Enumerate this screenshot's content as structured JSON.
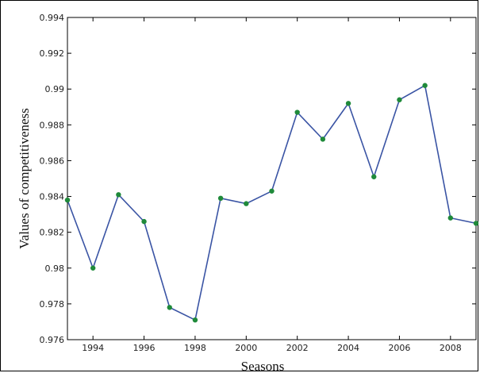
{
  "chart_data": {
    "type": "line",
    "title": "",
    "xlabel": "Seasons",
    "ylabel": "Values of competitiveness",
    "xlim": [
      1993,
      2009
    ],
    "ylim": [
      0.976,
      0.994
    ],
    "x_ticks": [
      1994,
      1996,
      1998,
      2000,
      2002,
      2004,
      2006,
      2008
    ],
    "x_tick_labels": [
      "1994",
      "1996",
      "1998",
      "2000",
      "2002",
      "2004",
      "2006",
      "2008"
    ],
    "y_ticks": [
      0.976,
      0.978,
      0.98,
      0.982,
      0.984,
      0.986,
      0.988,
      0.99,
      0.992,
      0.994
    ],
    "y_tick_labels": [
      "0.976",
      "0.978",
      "0.98",
      "0.982",
      "0.984",
      "0.986",
      "0.988",
      "0.99",
      "0.992",
      "0.994"
    ],
    "grid": false,
    "x": [
      1993,
      1994,
      1995,
      1996,
      1997,
      1998,
      1999,
      2000,
      2001,
      2002,
      2003,
      2004,
      2005,
      2006,
      2007,
      2008,
      2009
    ],
    "series": [
      {
        "values": [
          0.9838,
          0.98,
          0.9841,
          0.9826,
          0.9778,
          0.9771,
          0.9839,
          0.9836,
          0.9843,
          0.9887,
          0.9872,
          0.9892,
          0.9851,
          0.9894,
          0.9902,
          0.9828,
          0.9825
        ],
        "color": "#3a54a4",
        "marker_color": "#1f8a3a"
      }
    ]
  }
}
